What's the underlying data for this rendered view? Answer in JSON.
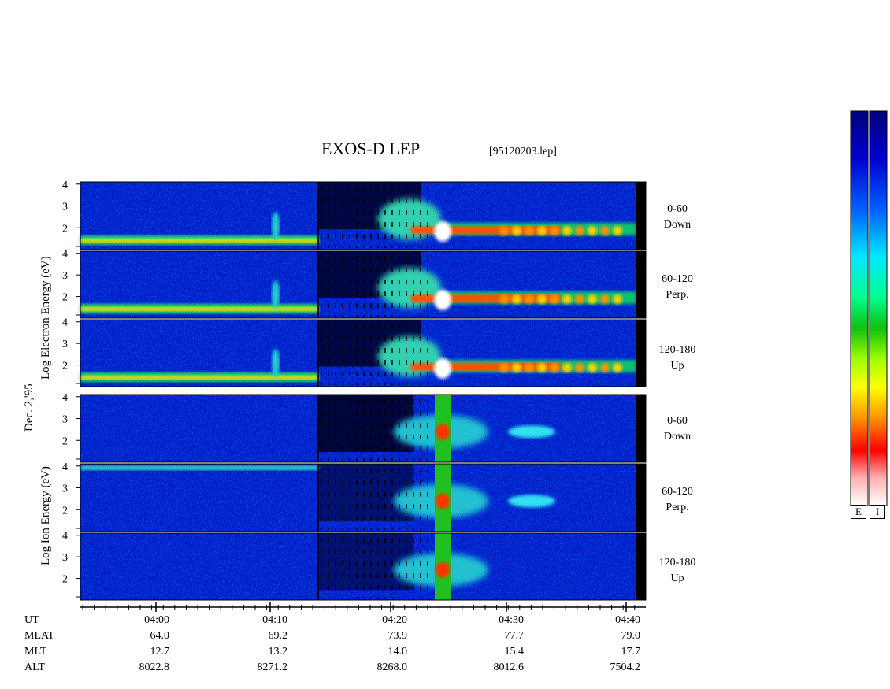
{
  "header": {
    "title": "EXOS-D LEP",
    "filename": "[95120203.lep]"
  },
  "axes": {
    "electron_ylabel": "Log   Electron   Energy (eV)",
    "ion_ylabel": "Log   Ion   Energy (eV)",
    "date_label": "Dec. 2,'95",
    "yticks": [
      "4",
      "3",
      "2"
    ]
  },
  "channels": {
    "electron": [
      {
        "range": "0-60",
        "dir": "Down"
      },
      {
        "range": "60-120",
        "dir": "Perp."
      },
      {
        "range": "120-180",
        "dir": "Up"
      }
    ],
    "ion": [
      {
        "range": "0-60",
        "dir": "Down"
      },
      {
        "range": "60-120",
        "dir": "Perp."
      },
      {
        "range": "120-180",
        "dir": "Up"
      }
    ]
  },
  "colorbar": {
    "labels": [
      "E",
      "I"
    ],
    "colors": [
      "#00007a",
      "#0000e0",
      "#0070ff",
      "#00e8ff",
      "#00ff90",
      "#10d010",
      "#a0ff00",
      "#ffff00",
      "#ffb000",
      "#ff6000",
      "#ff0000",
      "#ffb0b0",
      "#ffffff"
    ]
  },
  "chart_data": {
    "type": "heatmap",
    "title": "EXOS-D LEP",
    "x_ticks": [
      "04:00",
      "04:10",
      "04:20",
      "04:30",
      "04:40"
    ],
    "x_start_label": "03:54",
    "x_end_label": "04:41",
    "rows": [
      {
        "name": "UT",
        "values": [
          "04:00",
          "04:10",
          "04:20",
          "04:30",
          "04:40"
        ]
      },
      {
        "name": "MLAT",
        "values": [
          "64.0",
          "69.2",
          "73.9",
          "77.7",
          "79.0"
        ]
      },
      {
        "name": "MLT",
        "values": [
          "12.7",
          "13.2",
          "14.0",
          "15.4",
          "17.7"
        ]
      },
      {
        "name": "ALT",
        "values": [
          "8022.8",
          "8271.2",
          "8268.0",
          "8012.6",
          "7504.2"
        ]
      }
    ],
    "y_range_log_eV": [
      1,
      4.1
    ],
    "panels": [
      "electron 0-60 Down",
      "electron 60-120 Perp.",
      "electron 120-180 Up",
      "ion 0-60 Down",
      "ion 60-120 Perp.",
      "ion 120-180 Up"
    ]
  }
}
